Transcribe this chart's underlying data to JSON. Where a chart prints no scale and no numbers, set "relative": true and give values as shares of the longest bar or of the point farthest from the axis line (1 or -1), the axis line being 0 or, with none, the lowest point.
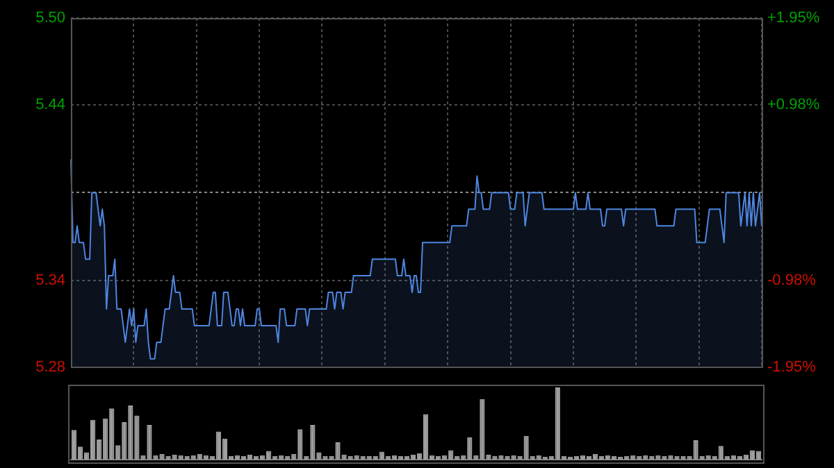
{
  "chart_data": [
    {
      "type": "area",
      "categories": [
        null,
        null,
        null,
        null,
        null,
        null,
        null,
        null,
        null,
        null,
        null,
        null,
        null,
        null,
        null,
        null,
        null,
        null,
        null,
        null,
        null,
        null,
        null,
        null,
        null,
        null,
        null,
        null,
        null,
        null,
        null,
        null,
        null,
        null,
        null,
        null,
        null,
        null,
        null,
        null,
        null,
        null,
        null,
        null,
        null,
        null,
        null,
        null,
        null,
        null,
        null,
        null,
        null,
        null,
        null,
        null,
        null,
        null,
        null,
        null,
        null,
        null,
        null,
        null,
        null,
        null,
        null,
        null,
        null,
        null,
        null,
        null,
        null,
        null,
        null,
        null,
        null,
        null,
        null,
        null,
        null,
        null,
        null,
        null,
        null,
        null,
        null,
        null,
        null,
        null,
        null,
        null,
        null,
        null,
        null,
        null,
        null,
        null,
        null,
        null,
        null,
        null,
        null,
        null,
        null,
        null,
        null,
        null,
        null,
        null,
        null,
        null,
        null,
        null,
        null,
        null,
        null,
        null,
        null,
        null,
        null,
        null,
        null,
        null,
        null,
        null,
        null,
        null,
        null,
        null,
        null,
        null,
        null,
        null,
        null,
        null,
        null,
        null,
        null,
        null,
        null,
        null,
        null,
        null,
        null,
        null,
        null,
        null,
        null,
        null,
        null,
        null,
        null,
        null,
        null,
        null,
        null,
        null,
        null,
        null,
        null,
        null,
        null,
        null,
        null,
        null,
        null,
        null,
        null,
        null,
        null,
        null,
        null,
        null,
        null,
        null,
        null,
        null,
        null,
        null,
        null,
        null,
        null,
        null,
        null,
        null,
        null,
        null,
        null,
        null,
        null,
        null,
        null,
        null,
        null,
        null,
        null,
        null,
        null,
        null,
        null,
        null,
        null,
        null,
        null,
        null,
        null,
        null,
        null,
        null,
        null,
        null,
        null,
        null,
        null,
        null,
        null,
        null,
        null,
        null,
        null,
        null,
        null,
        null,
        null,
        null,
        null,
        null,
        null,
        null,
        null,
        null,
        null,
        null,
        null,
        null,
        null,
        null,
        null,
        null,
        null,
        null,
        null,
        null,
        null,
        null,
        null,
        null,
        null,
        null,
        null,
        null,
        null,
        null,
        null,
        null,
        null,
        null,
        null,
        null,
        null,
        null,
        null,
        null,
        null,
        null,
        null,
        null,
        null,
        null,
        null,
        null,
        null,
        null,
        null,
        null,
        null,
        null,
        null,
        null,
        null,
        null,
        null,
        null,
        null,
        null,
        null,
        null,
        null,
        null,
        null,
        null,
        null,
        null,
        null,
        null,
        null,
        null,
        null,
        null,
        null,
        null,
        null,
        null,
        null,
        null,
        null,
        null,
        null,
        null,
        null,
        null,
        null,
        null,
        null,
        null,
        null,
        null,
        null,
        null,
        null,
        null,
        null,
        null,
        null,
        null,
        null,
        null,
        null,
        null,
        null
      ],
      "series": [
        {
          "color": "#4f86e0",
          "values": [
            5.41,
            5.36,
            5.36,
            5.37,
            5.36,
            5.36,
            5.36,
            5.35,
            5.35,
            5.35,
            5.39,
            5.39,
            5.39,
            5.38,
            5.37,
            5.38,
            5.37,
            5.32,
            5.34,
            5.34,
            5.34,
            5.35,
            5.32,
            5.32,
            5.32,
            5.31,
            5.3,
            5.31,
            5.32,
            5.31,
            5.32,
            5.3,
            5.31,
            5.31,
            5.31,
            5.31,
            5.32,
            5.3,
            5.29,
            5.29,
            5.29,
            5.3,
            5.3,
            5.3,
            5.31,
            5.32,
            5.32,
            5.32,
            5.33,
            5.34,
            5.33,
            5.33,
            5.33,
            5.32,
            5.32,
            5.32,
            5.32,
            5.32,
            5.32,
            5.31,
            5.31,
            5.31,
            5.31,
            5.31,
            5.31,
            5.31,
            5.31,
            5.32,
            5.33,
            5.33,
            5.31,
            5.31,
            5.31,
            5.33,
            5.33,
            5.33,
            5.32,
            5.31,
            5.31,
            5.32,
            5.32,
            5.31,
            5.32,
            5.31,
            5.31,
            5.31,
            5.31,
            5.31,
            5.31,
            5.32,
            5.32,
            5.31,
            5.31,
            5.31,
            5.31,
            5.31,
            5.31,
            5.31,
            5.31,
            5.3,
            5.32,
            5.32,
            5.32,
            5.31,
            5.31,
            5.31,
            5.31,
            5.31,
            5.32,
            5.32,
            5.32,
            5.32,
            5.32,
            5.31,
            5.32,
            5.32,
            5.32,
            5.32,
            5.32,
            5.32,
            5.32,
            5.32,
            5.32,
            5.33,
            5.33,
            5.33,
            5.32,
            5.33,
            5.33,
            5.33,
            5.32,
            5.33,
            5.33,
            5.33,
            5.33,
            5.34,
            5.34,
            5.34,
            5.34,
            5.34,
            5.34,
            5.34,
            5.34,
            5.34,
            5.35,
            5.35,
            5.35,
            5.35,
            5.35,
            5.35,
            5.35,
            5.35,
            5.35,
            5.35,
            5.35,
            5.35,
            5.34,
            5.34,
            5.34,
            5.35,
            5.34,
            5.34,
            5.34,
            5.33,
            5.34,
            5.34,
            5.33,
            5.33,
            5.36,
            5.36,
            5.36,
            5.36,
            5.36,
            5.36,
            5.36,
            5.36,
            5.36,
            5.36,
            5.36,
            5.36,
            5.36,
            5.36,
            5.37,
            5.37,
            5.37,
            5.37,
            5.37,
            5.37,
            5.37,
            5.37,
            5.38,
            5.38,
            5.38,
            5.38,
            5.4,
            5.39,
            5.39,
            5.38,
            5.38,
            5.38,
            5.38,
            5.39,
            5.39,
            5.39,
            5.39,
            5.39,
            5.39,
            5.39,
            5.39,
            5.39,
            5.38,
            5.38,
            5.38,
            5.39,
            5.39,
            5.39,
            5.39,
            5.37,
            5.38,
            5.39,
            5.39,
            5.39,
            5.39,
            5.39,
            5.39,
            5.39,
            5.38,
            5.38,
            5.38,
            5.38,
            5.38,
            5.38,
            5.38,
            5.38,
            5.38,
            5.38,
            5.38,
            5.38,
            5.38,
            5.38,
            5.38,
            5.39,
            5.38,
            5.38,
            5.38,
            5.38,
            5.38,
            5.39,
            5.38,
            5.38,
            5.38,
            5.38,
            5.38,
            5.38,
            5.37,
            5.37,
            5.38,
            5.38,
            5.38,
            5.38,
            5.38,
            5.38,
            5.38,
            5.38,
            5.37,
            5.38,
            5.38,
            5.38,
            5.38,
            5.38,
            5.38,
            5.38,
            5.38,
            5.38,
            5.38,
            5.38,
            5.38,
            5.38,
            5.38,
            5.38,
            5.37,
            5.37,
            5.37,
            5.37,
            5.37,
            5.37,
            5.37,
            5.37,
            5.37,
            5.38,
            5.38,
            5.38,
            5.38,
            5.38,
            5.38,
            5.38,
            5.38,
            5.38,
            5.38,
            5.36,
            5.36,
            5.36,
            5.36,
            5.36,
            5.37,
            5.38,
            5.38,
            5.38,
            5.38,
            5.38,
            5.38,
            5.37,
            5.36,
            5.39,
            5.39,
            5.39,
            5.39,
            5.39,
            5.39,
            5.39,
            5.37,
            5.38,
            5.39,
            5.37,
            5.39,
            5.37,
            5.39,
            5.37,
            5.38,
            5.39,
            5.37
          ]
        }
      ],
      "ylim": [
        5.285,
        5.495
      ],
      "yticks": [
        {
          "value": 5.285,
          "label": "5.28"
        },
        {
          "value": 5.337,
          "label": "5.34"
        },
        {
          "value": 5.443,
          "label": "5.44"
        },
        {
          "value": 5.495,
          "label": "5.50"
        }
      ],
      "y2lim": [
        -1.95,
        1.95
      ],
      "y2ticks": [
        {
          "value": -1.95,
          "label": "-1.95%"
        },
        {
          "value": -0.98,
          "label": "-0.98%"
        },
        {
          "value": 0,
          "label": null
        },
        {
          "value": 0.98,
          "label": "+0.98%"
        },
        {
          "value": 1.95,
          "label": "+1.95%"
        }
      ],
      "grid": true,
      "marker": "none",
      "legend": false,
      "tick_labels": "y"
    },
    {
      "type": "bar",
      "relative": true,
      "legend": false,
      "tick_labels": false,
      "categories": [
        null,
        null,
        null,
        null,
        null,
        null,
        null,
        null,
        null,
        null,
        null,
        null,
        null,
        null,
        null,
        null,
        null,
        null,
        null,
        null,
        null,
        null,
        null,
        null,
        null,
        null,
        null,
        null,
        null,
        null,
        null,
        null,
        null,
        null,
        null,
        null,
        null,
        null,
        null,
        null,
        null,
        null,
        null,
        null,
        null,
        null,
        null,
        null,
        null,
        null,
        null,
        null,
        null,
        null,
        null,
        null,
        null,
        null,
        null,
        null,
        null,
        null,
        null,
        null,
        null,
        null,
        null,
        null,
        null,
        null,
        null,
        null,
        null,
        null,
        null,
        null,
        null,
        null,
        null,
        null,
        null,
        null,
        null,
        null,
        null,
        null,
        null,
        null,
        null,
        null,
        null,
        null,
        null,
        null,
        null,
        null,
        null,
        null,
        null,
        null,
        null,
        null,
        null,
        null,
        null,
        null,
        null,
        null,
        null,
        null
      ],
      "color": "#a0a0a0",
      "values": [
        0.41,
        0.18,
        0.1,
        0.55,
        0.28,
        0.57,
        0.71,
        0.2,
        0.52,
        0.75,
        0.61,
        0.06,
        0.48,
        0.06,
        0.08,
        0.05,
        0.07,
        0.06,
        0.05,
        0.06,
        0.08,
        0.06,
        0.05,
        0.39,
        0.29,
        0.05,
        0.06,
        0.05,
        0.07,
        0.05,
        0.06,
        0.12,
        0.05,
        0.06,
        0.05,
        0.08,
        0.42,
        0.05,
        0.48,
        0.1,
        0.05,
        0.05,
        0.24,
        0.07,
        0.05,
        0.06,
        0.05,
        0.05,
        0.05,
        0.11,
        0.05,
        0.06,
        0.05,
        0.05,
        0.07,
        0.09,
        0.63,
        0.06,
        0.05,
        0.06,
        0.13,
        0.05,
        0.06,
        0.31,
        0.06,
        0.84,
        0.07,
        0.05,
        0.06,
        0.05,
        0.06,
        0.05,
        0.33,
        0.05,
        0.06,
        0.04,
        0.05,
        1,
        0.05,
        0.04,
        0.05,
        0.06,
        0.05,
        0.08,
        0.05,
        0.06,
        0.05,
        0.04,
        0.05,
        0.06,
        0.05,
        0.06,
        0.05,
        0.06,
        0.05,
        0.06,
        0.05,
        0.05,
        0.05,
        0.27,
        0.05,
        0.06,
        0.05,
        0.19,
        0.05,
        0.06,
        0.05,
        0.07,
        0.13,
        0.12
      ]
    }
  ]
}
